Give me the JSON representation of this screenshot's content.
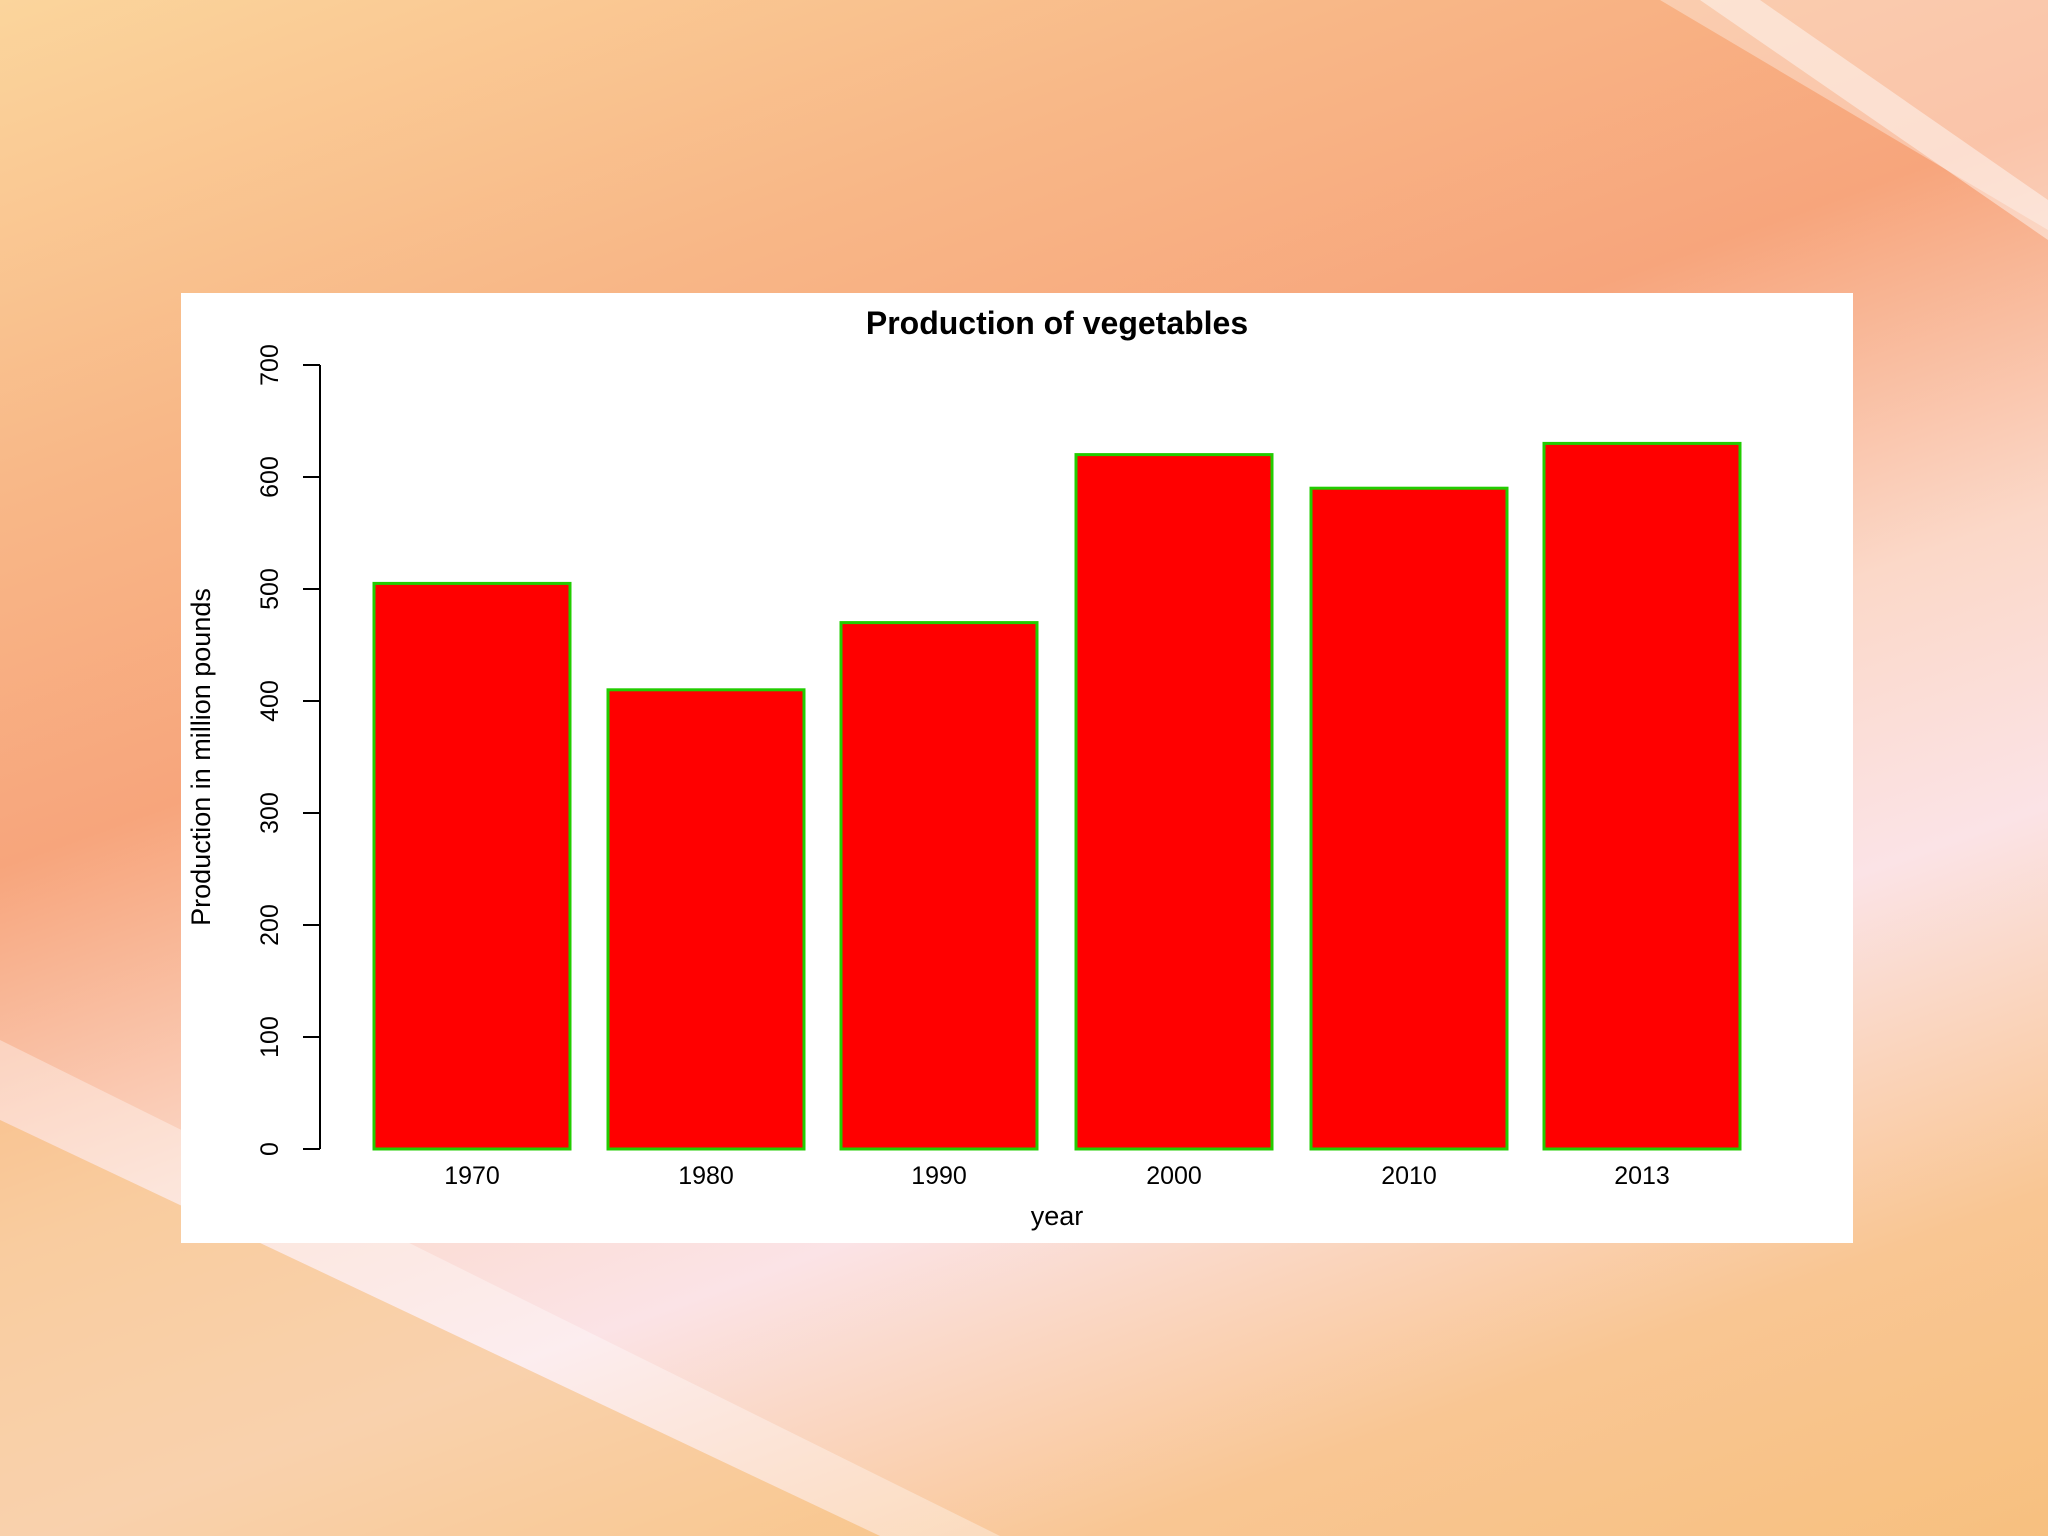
{
  "colors": {
    "bar_fill": "#ff0000",
    "bar_border": "#22cc00",
    "axis": "#000000",
    "panel": "#ffffff"
  },
  "chart_data": {
    "type": "bar",
    "title": "Production of vegetables",
    "xlabel": "year",
    "ylabel": "Production in million pounds",
    "categories": [
      "1970",
      "1980",
      "1990",
      "2000",
      "2010",
      "2013"
    ],
    "values": [
      505,
      410,
      470,
      620,
      590,
      630
    ],
    "ylim": [
      0,
      700
    ],
    "yticks": [
      0,
      100,
      200,
      300,
      400,
      500,
      600,
      700
    ],
    "grid": false,
    "legend": "none"
  }
}
